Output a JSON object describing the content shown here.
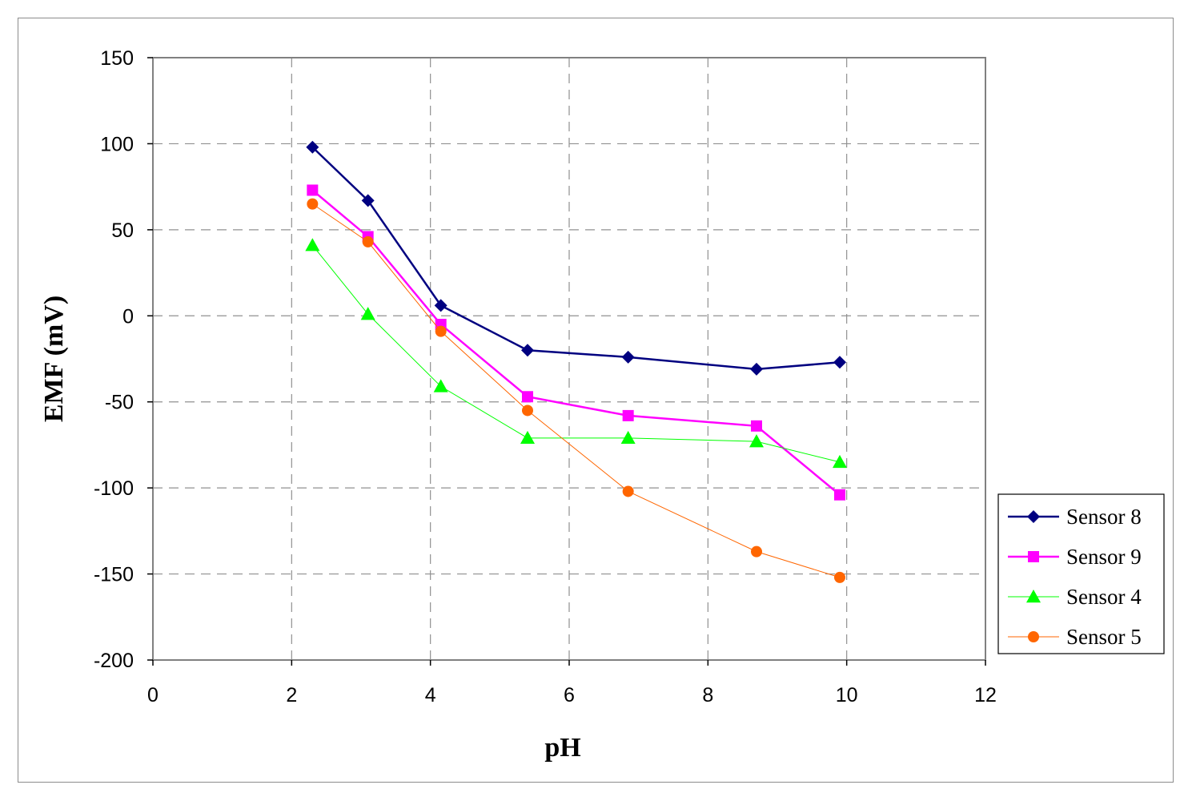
{
  "chart_data": {
    "type": "line",
    "title": "",
    "xlabel": "pH",
    "ylabel": "EMF (mV)",
    "xlim": [
      0,
      12
    ],
    "ylim": [
      -200,
      150
    ],
    "xticks": [
      "0",
      "2",
      "4",
      "6",
      "8",
      "10",
      "12"
    ],
    "yticks": [
      "150",
      "100",
      "50",
      "0",
      "-50",
      "-100",
      "-150",
      "-200"
    ],
    "grid": "dashed",
    "legend_position": "right",
    "series": [
      {
        "name": "Sensor 8",
        "color": "#000080",
        "marker": "diamond",
        "stroke_width": 2.5,
        "x": [
          2.3,
          3.1,
          4.15,
          5.4,
          6.85,
          8.7,
          9.9
        ],
        "y": [
          98,
          67,
          6,
          -20,
          -24,
          -31,
          -27
        ]
      },
      {
        "name": "Sensor 9",
        "color": "#ff00ff",
        "marker": "square",
        "stroke_width": 2.5,
        "x": [
          2.3,
          3.1,
          4.15,
          5.4,
          6.85,
          8.7,
          9.9
        ],
        "y": [
          73,
          46,
          -5,
          -47,
          -58,
          -64,
          -104
        ]
      },
      {
        "name": "Sensor 4",
        "color": "#00ff00",
        "marker": "triangle",
        "stroke_width": 1,
        "x": [
          2.3,
          3.1,
          4.15,
          5.4,
          6.85,
          8.7,
          9.9
        ],
        "y": [
          41,
          1,
          -41,
          -71,
          -71,
          -73,
          -85
        ]
      },
      {
        "name": "Sensor 5",
        "color": "#ff6600",
        "marker": "circle",
        "stroke_width": 1,
        "x": [
          2.3,
          3.1,
          4.15,
          5.4,
          6.85,
          8.7,
          9.9
        ],
        "y": [
          65,
          43,
          -9,
          -55,
          -102,
          -137,
          -152
        ]
      }
    ]
  }
}
